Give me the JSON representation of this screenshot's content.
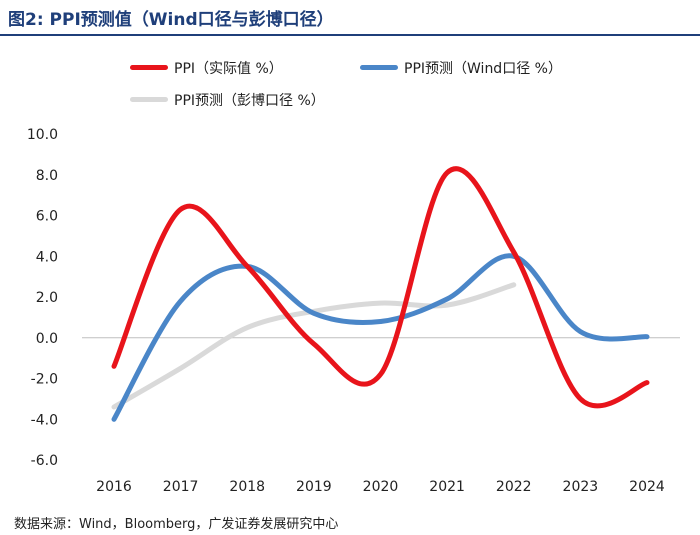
{
  "figure": {
    "title": "图2:  PPI预测值（Wind口径与彭博口径）",
    "source": "数据来源：Wind，Bloomberg，广发证券发展研究中心"
  },
  "chart_data": {
    "type": "line",
    "title": "图2:  PPI预测值（Wind口径与彭博口径）",
    "xlabel": "",
    "ylabel": "",
    "categories": [
      "2016",
      "2017",
      "2018",
      "2019",
      "2020",
      "2021",
      "2022",
      "2023",
      "2024"
    ],
    "ylim": [
      -6.0,
      10.0
    ],
    "yticks": [
      "10.0",
      "8.0",
      "6.0",
      "4.0",
      "2.0",
      "0.0",
      "-2.0",
      "-4.0",
      "-6.0"
    ],
    "grid": false,
    "legend_position": "top",
    "series": [
      {
        "name": "PPI（实际值 %）",
        "color": "#e8141b",
        "values": [
          -1.4,
          6.3,
          3.5,
          -0.3,
          -1.8,
          8.1,
          4.2,
          -3.0,
          -2.2
        ]
      },
      {
        "name": "PPI预测（Wind口径 %）",
        "color": "#4a86c8",
        "values": [
          -4.0,
          1.8,
          3.5,
          1.2,
          0.8,
          1.9,
          4.0,
          0.3,
          0.05
        ]
      },
      {
        "name": "PPI预测（彭博口径 %）",
        "color": "#d9d9d9",
        "values": [
          -3.4,
          -1.5,
          0.5,
          1.3,
          1.7,
          1.6,
          2.6,
          null,
          null
        ]
      }
    ]
  }
}
